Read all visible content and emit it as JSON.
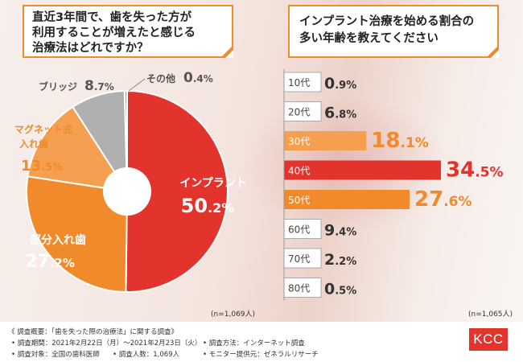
{
  "left_question": [
    "直近3年間で、歯を失った方が",
    "利用することが増えたと感じる",
    "治療法はどれですか？"
  ],
  "right_question": [
    "インプラント治療を始める割合の",
    "多い年齢を教えてください"
  ],
  "colors": {
    "accent_orange": "#f08a2a",
    "red": "#e2342d",
    "gray": "#b0b0b0",
    "light_orange": "#f5a050",
    "logo_red": "#e2342d"
  },
  "chart_data": [
    {
      "type": "pie",
      "slices": [
        {
          "label": "インプラント",
          "value": 50.2,
          "color": "#e2342d"
        },
        {
          "label": "部分入れ歯",
          "value": 27.2,
          "color": "#f08a2a"
        },
        {
          "label": "マグネット式入れ歯",
          "value": 13.5,
          "color": "#f5a050"
        },
        {
          "label": "ブリッジ",
          "value": 8.7,
          "color": "#b0b0b0"
        },
        {
          "label": "その他",
          "value": 0.4,
          "color": "#9a9a9a"
        }
      ],
      "value_suffix": "%",
      "n_note": "(n=1,069人)"
    },
    {
      "type": "bar",
      "orientation": "horizontal",
      "categories": [
        "10代",
        "20代",
        "30代",
        "40代",
        "50代",
        "60代",
        "70代",
        "80代"
      ],
      "values": [
        0.9,
        6.8,
        18.1,
        34.5,
        27.6,
        9.4,
        2.2,
        0.5
      ],
      "value_suffix": "%",
      "highlight_colors": {
        "30代": "#f5a050",
        "40代": "#e2342d",
        "50代": "#f08a2a"
      },
      "n_note": "(n=1,065人)"
    }
  ],
  "footer": {
    "title": "《 調査概要：「歯を失った際の治療法」に関する調査》",
    "period": "• 調査期間：2021年2月22日（月）～2021年2月23日（火）",
    "method": "• 調査方法：インターネット調査",
    "target": "• 調査対象：全国の歯科医師",
    "people": "• 調査人数：1,069人",
    "provider": "• モニター提供元：ゼネラルリサーチ"
  },
  "logo": "KCC"
}
